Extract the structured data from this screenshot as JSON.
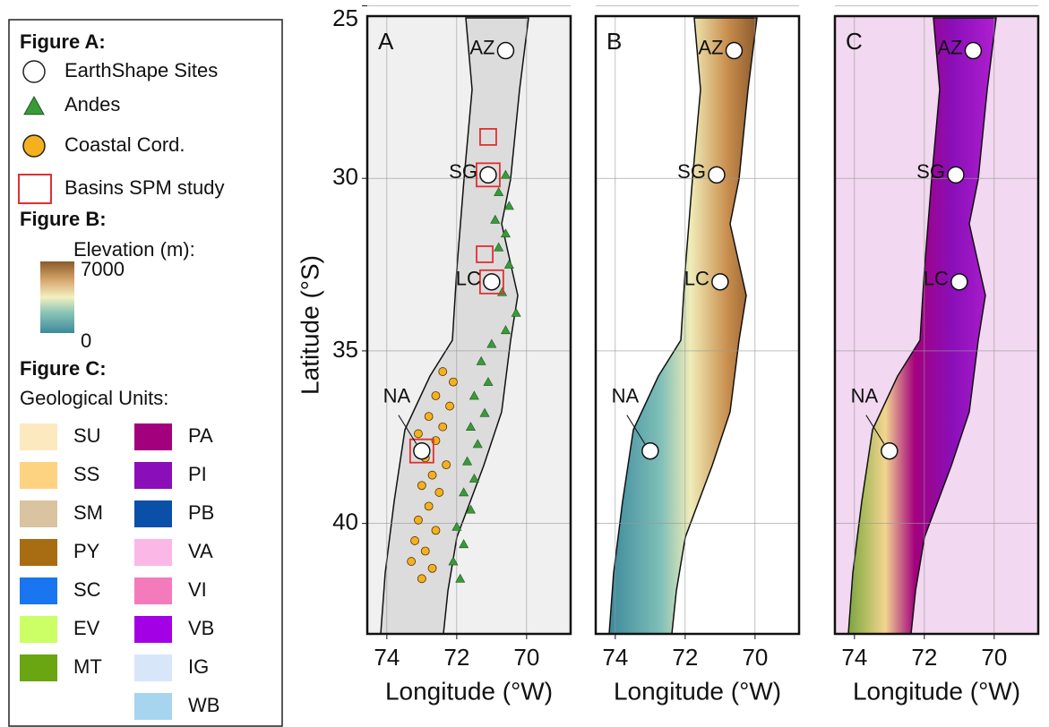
{
  "legend": {
    "figure_a": {
      "title": "Figure A:",
      "items": [
        {
          "label": "EarthShape Sites",
          "color": "#ffffff"
        },
        {
          "label": "Andes",
          "color": "#3a9a3a"
        },
        {
          "label": "Coastal Cord.",
          "color": "#f5b020"
        },
        {
          "label": "Basins SPM study",
          "color": "#e03030"
        }
      ]
    },
    "figure_b": {
      "title": "Figure B:",
      "subtitle": "Elevation (m):",
      "range": [
        0,
        7000
      ]
    },
    "figure_c": {
      "title": "Figure C:",
      "subtitle": "Geological Units:",
      "units": [
        {
          "name": "SU",
          "color": "#fde9c0"
        },
        {
          "name": "SS",
          "color": "#fdd382"
        },
        {
          "name": "SM",
          "color": "#d9c3a0"
        },
        {
          "name": "PY",
          "color": "#a86d12"
        },
        {
          "name": "SC",
          "color": "#1a75f0"
        },
        {
          "name": "EV",
          "color": "#ccff66"
        },
        {
          "name": "MT",
          "color": "#6aa512"
        },
        {
          "name": "PA",
          "color": "#a3007d"
        },
        {
          "name": "PI",
          "color": "#8a0fb8"
        },
        {
          "name": "PB",
          "color": "#0a4fa8"
        },
        {
          "name": "VA",
          "color": "#fbb8e6"
        },
        {
          "name": "VI",
          "color": "#f47bbb"
        },
        {
          "name": "VB",
          "color": "#a300e6"
        },
        {
          "name": "IG",
          "color": "#d8e6fa"
        },
        {
          "name": "WB",
          "color": "#a7d4ef"
        }
      ]
    }
  },
  "map": {
    "panels": [
      "A",
      "B",
      "C"
    ],
    "xlabel": "Longitude (°W)",
    "ylabel": "Latitude (°S)",
    "xlim": [
      74.56,
      68.74
    ],
    "ylim": [
      25.3,
      43.2
    ],
    "xticks": [
      74,
      72,
      70
    ],
    "yticks": [
      25,
      30,
      35,
      40
    ],
    "grid": true,
    "sites": [
      {
        "name": "AZ",
        "lon": 70.6,
        "lat": 26.3
      },
      {
        "name": "SG",
        "lon": 71.1,
        "lat": 29.9
      },
      {
        "name": "LC",
        "lon": 71.0,
        "lat": 33.0
      },
      {
        "name": "NA",
        "lon": 73.0,
        "lat": 37.9
      }
    ],
    "basins": [
      {
        "lon": 71.1,
        "lat": 28.8,
        "size": 1
      },
      {
        "lon": 71.1,
        "lat": 29.9,
        "size": 2
      },
      {
        "lon": 71.2,
        "lat": 32.2,
        "size": 1
      },
      {
        "lon": 71.0,
        "lat": 33.0,
        "size": 2
      },
      {
        "lon": 73.0,
        "lat": 37.9,
        "size": 2
      }
    ],
    "andes": [
      [
        70.6,
        29.9
      ],
      [
        70.8,
        30.4
      ],
      [
        70.5,
        30.8
      ],
      [
        70.9,
        31.2
      ],
      [
        70.6,
        31.6
      ],
      [
        70.8,
        32.0
      ],
      [
        70.5,
        32.5
      ],
      [
        70.7,
        33.3
      ],
      [
        70.3,
        33.9
      ],
      [
        70.6,
        34.4
      ],
      [
        71.0,
        34.8
      ],
      [
        71.3,
        35.3
      ],
      [
        71.1,
        35.9
      ],
      [
        71.5,
        36.3
      ],
      [
        71.2,
        36.8
      ],
      [
        71.6,
        37.2
      ],
      [
        71.4,
        37.7
      ],
      [
        71.7,
        38.2
      ],
      [
        71.5,
        38.7
      ],
      [
        71.8,
        39.1
      ],
      [
        71.6,
        39.6
      ],
      [
        72.0,
        40.1
      ],
      [
        71.8,
        40.6
      ],
      [
        72.1,
        41.1
      ],
      [
        71.9,
        41.6
      ]
    ],
    "coastal": [
      [
        72.4,
        35.6
      ],
      [
        72.1,
        35.9
      ],
      [
        72.6,
        36.3
      ],
      [
        72.2,
        36.6
      ],
      [
        72.8,
        36.9
      ],
      [
        72.4,
        37.2
      ],
      [
        73.1,
        37.4
      ],
      [
        72.6,
        37.6
      ],
      [
        72.9,
        38.1
      ],
      [
        72.3,
        38.3
      ],
      [
        72.7,
        38.6
      ],
      [
        73.0,
        38.9
      ],
      [
        72.5,
        39.1
      ],
      [
        72.8,
        39.5
      ],
      [
        73.1,
        39.9
      ],
      [
        72.6,
        40.2
      ],
      [
        73.2,
        40.5
      ],
      [
        72.9,
        40.8
      ],
      [
        73.3,
        41.1
      ],
      [
        72.7,
        41.3
      ],
      [
        73.0,
        41.6
      ]
    ]
  }
}
